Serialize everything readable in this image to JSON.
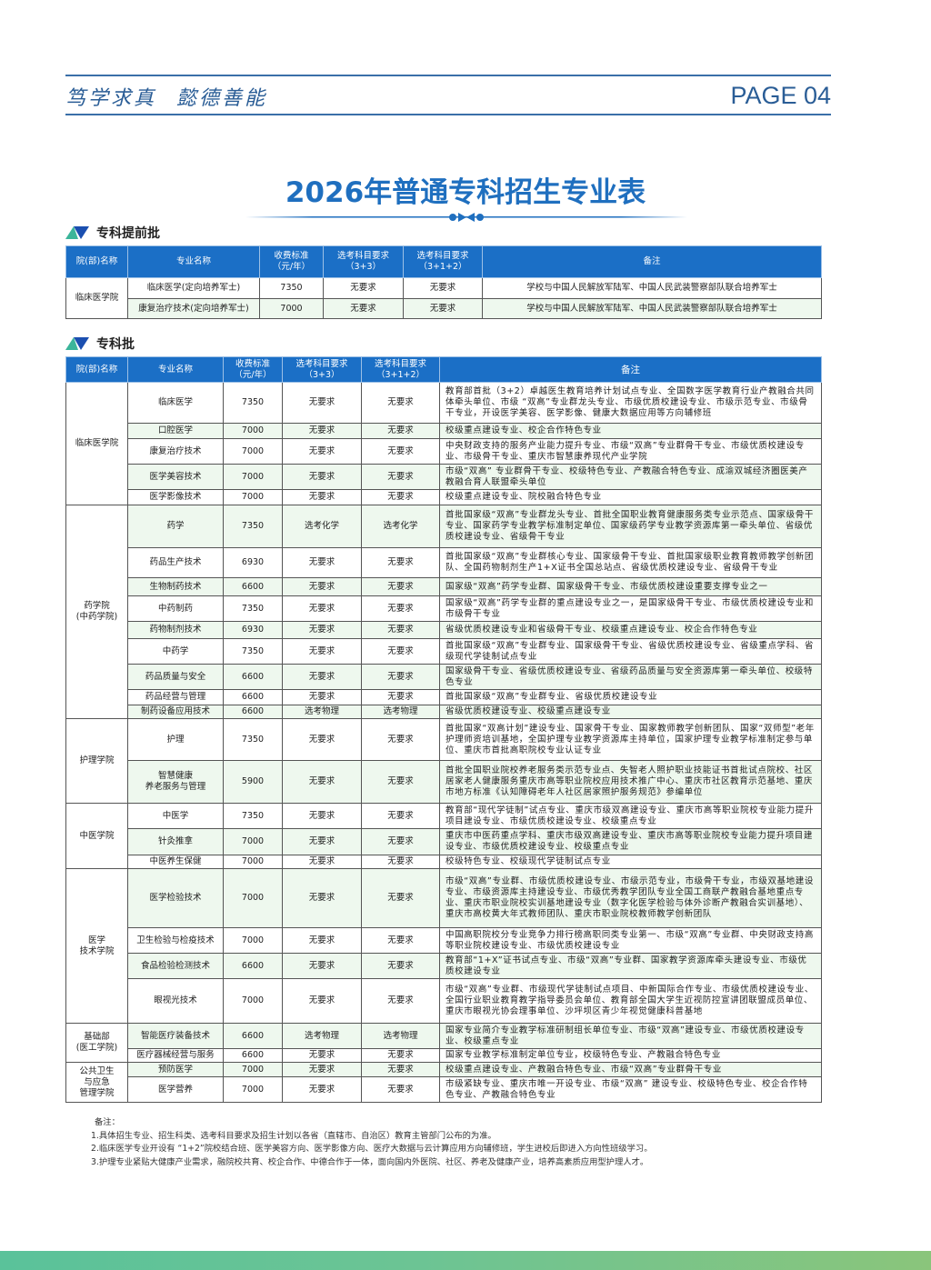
{
  "header": {
    "motto_1": "笃学求真",
    "motto_2": "懿德善能",
    "page_label": "PAGE 04"
  },
  "title": "2026年普通专科招生专业表",
  "colors": {
    "accent": "#1f6fbf",
    "header_bg": "#1b6fc6",
    "row_alt": "#eef8ee"
  },
  "columns": [
    "院(部)名称",
    "专业名称",
    "收费标准\n（元/年）",
    "选考科目要求\n（3+3）",
    "选考科目要求\n（3+1+2）",
    "备注"
  ],
  "early_batch": {
    "heading": "专科提前批",
    "groups": [
      {
        "college": "临床医学院",
        "rows": [
          {
            "major": "临床医学(定向培养军士)",
            "fee": "7350",
            "req33": "无要求",
            "req312": "无要求",
            "note": "学校与中国人民解放军陆军、中国人民武装警察部队联合培养军士"
          },
          {
            "major": "康复治疗技术(定向培养军士)",
            "fee": "7000",
            "req33": "无要求",
            "req312": "无要求",
            "note": "学校与中国人民解放军陆军、中国人民武装警察部队联合培养军士"
          }
        ]
      }
    ]
  },
  "regular_batch": {
    "heading": "专科批",
    "groups": [
      {
        "college": "临床医学院",
        "rows": [
          {
            "major": "临床医学",
            "fee": "7350",
            "req33": "无要求",
            "req312": "无要求",
            "note": "教育部首批（3+2）卓越医生教育培养计划试点专业、全国数字医学教育行业产教融合共同体牵头单位、市级 “双高”专业群龙头专业、市级优质校建设专业、市级示范专业、市级骨干专业，开设医学美容、医学影像、健康大数据应用等方向辅修班"
          },
          {
            "major": "口腔医学",
            "fee": "7000",
            "req33": "无要求",
            "req312": "无要求",
            "note": "校级重点建设专业、校企合作特色专业"
          },
          {
            "major": "康复治疗技术",
            "fee": "7000",
            "req33": "无要求",
            "req312": "无要求",
            "note": "中央财政支持的服务产业能力提升专业、市级“双高”专业群骨干专业、市级优质校建设专业、市级骨干专业、重庆市智慧康养现代产业学院"
          },
          {
            "major": "医学美容技术",
            "fee": "7000",
            "req33": "无要求",
            "req312": "无要求",
            "note": "市级“双高” 专业群骨干专业、校级特色专业、产教融合特色专业、成渝双城经济圈医美产教融合育人联盟牵头单位"
          },
          {
            "major": "医学影像技术",
            "fee": "7000",
            "req33": "无要求",
            "req312": "无要求",
            "note": "校级重点建设专业、院校融合特色专业"
          }
        ]
      },
      {
        "college": "药学院\n(中药学院)",
        "rows": [
          {
            "major": "药学",
            "fee": "7350",
            "req33": "选考化学",
            "req312": "选考化学",
            "note": "首批国家级“双高”专业群龙头专业、首批全国职业教育健康服务类专业示范点、国家级骨干专业、国家药学专业教学标准制定单位、国家级药学专业教学资源库第一牵头单位、省级优质校建设专业、省级骨干专业"
          },
          {
            "major": "药品生产技术",
            "fee": "6930",
            "req33": "无要求",
            "req312": "无要求",
            "note": "首批国家级“双高”专业群核心专业、国家级骨干专业、首批国家级职业教育教师教学创新团队、全国药物制剂生产1+X证书全国总站点、省级优质校建设专业、省级骨干专业"
          },
          {
            "major": "生物制药技术",
            "fee": "6600",
            "req33": "无要求",
            "req312": "无要求",
            "note": "国家级“双高”药学专业群、国家级骨干专业、市级优质校建设重要支撑专业之一"
          },
          {
            "major": "中药制药",
            "fee": "7350",
            "req33": "无要求",
            "req312": "无要求",
            "note": "国家级“双高”药学专业群的重点建设专业之一，是国家级骨干专业、市级优质校建设专业和市级骨干专业"
          },
          {
            "major": "药物制剂技术",
            "fee": "6930",
            "req33": "无要求",
            "req312": "无要求",
            "note": "省级优质校建设专业和省级骨干专业、校级重点建设专业、校企合作特色专业"
          },
          {
            "major": "中药学",
            "fee": "7350",
            "req33": "无要求",
            "req312": "无要求",
            "note": "首批国家级“双高”专业群专业、国家级骨干专业、省级优质校建设专业、省级重点学科、省级现代学徒制试点专业"
          },
          {
            "major": "药品质量与安全",
            "fee": "6600",
            "req33": "无要求",
            "req312": "无要求",
            "note": "国家级骨干专业、省级优质校建设专业、省级药品质量与安全资源库第一牵头单位、校级特色专业"
          },
          {
            "major": "药品经营与管理",
            "fee": "6600",
            "req33": "无要求",
            "req312": "无要求",
            "note": "首批国家级“双高”专业群专业、省级优质校建设专业"
          },
          {
            "major": "制药设备应用技术",
            "fee": "6600",
            "req33": "选考物理",
            "req312": "选考物理",
            "note": "省级优质校建设专业、校级重点建设专业"
          }
        ]
      },
      {
        "college": "护理学院",
        "rows": [
          {
            "major": "护理",
            "fee": "7350",
            "req33": "无要求",
            "req312": "无要求",
            "note": "首批国家“双高计划”建设专业、国家骨干专业、国家教师教学创新团队、国家“双师型”老年护理师资培训基地，全国护理专业教学资源库主持单位，国家护理专业教学标准制定参与单位、重庆市首批高职院校专业认证专业"
          },
          {
            "major": "智慧健康\n养老服务与管理",
            "fee": "5900",
            "req33": "无要求",
            "req312": "无要求",
            "note": "首批全国职业院校养老服务类示范专业点、失智老人照护职业技能证书首批试点院校、社区居家老人健康服务重庆市高等职业院校应用技术推广中心、重庆市社区教育示范基地、重庆市地方标准《认知障碍老年人社区居家照护服务规范》参编单位"
          }
        ]
      },
      {
        "college": "中医学院",
        "rows": [
          {
            "major": "中医学",
            "fee": "7350",
            "req33": "无要求",
            "req312": "无要求",
            "note": "教育部“现代学徒制”试点专业、重庆市级双高建设专业、重庆市高等职业院校专业能力提升项目建设专业、市级优质校建设专业、校级重点专业"
          },
          {
            "major": "针灸推拿",
            "fee": "7000",
            "req33": "无要求",
            "req312": "无要求",
            "note": "重庆市中医药重点学科、重庆市级双高建设专业、重庆市高等职业院校专业能力提升项目建设专业、市级优质校建设专业、校级重点专业"
          },
          {
            "major": "中医养生保健",
            "fee": "7000",
            "req33": "无要求",
            "req312": "无要求",
            "note": "校级特色专业、校级现代学徒制试点专业"
          }
        ]
      },
      {
        "college": "医学\n技术学院",
        "rows": [
          {
            "major": "医学检验技术",
            "fee": "7000",
            "req33": "无要求",
            "req312": "无要求",
            "note": "市级“双高”专业群、市级优质校建设专业、市级示范专业，市级骨干专业，市级双基地建设专业、市级资源库主持建设专业、市级优秀教学团队专业全国工商联产教融合基地重点专业、重庆市职业院校实训基地建设专业（数字化医学检验与体外诊断产教融合实训基地）、重庆市高校黄大年式教师团队、重庆市职业院校教师教学创新团队"
          },
          {
            "major": "卫生检验与检疫技术",
            "fee": "7000",
            "req33": "无要求",
            "req312": "无要求",
            "note": "中国高职院校分专业竞争力排行榜高职同类专业第一、市级“双高”专业群、中央财政支持高等职业院校建设专业、市级优质校建设专业"
          },
          {
            "major": "食品检验检测技术",
            "fee": "6600",
            "req33": "无要求",
            "req312": "无要求",
            "note": "教育部“1+X”证书试点专业、市级“双高”专业群、国家教学资源库牵头建设专业、市级优质校建设专业"
          },
          {
            "major": "眼视光技术",
            "fee": "7000",
            "req33": "无要求",
            "req312": "无要求",
            "note": "市级“双高”专业群、市级现代学徒制试点项目、中新国际合作专业、市级优质校建设专业、全国行业职业教育教学指导委员会单位、教育部全国大学生近视防控宣讲团联盟成员单位、重庆市眼视光协会理事单位、沙坪坝区青少年视觉健康科普基地"
          }
        ]
      },
      {
        "college": "基础部\n(医工学院)",
        "rows": [
          {
            "major": "智能医疗装备技术",
            "fee": "6600",
            "req33": "选考物理",
            "req312": "选考物理",
            "note": "国家专业简介专业教学标准研制组长单位专业、市级“双高”建设专业、市级优质校建设专业、校级重点专业"
          },
          {
            "major": "医疗器械经营与服务",
            "fee": "6600",
            "req33": "无要求",
            "req312": "无要求",
            "note": "国家专业教学标准制定单位专业，校级特色专业、产教融合特色专业"
          }
        ]
      },
      {
        "college": "公共卫生\n与应急\n管理学院",
        "rows": [
          {
            "major": "预防医学",
            "fee": "7000",
            "req33": "无要求",
            "req312": "无要求",
            "note": "校级重点建设专业、产教融合特色专业、市级“双高”专业群骨干专业"
          },
          {
            "major": "医学营养",
            "fee": "7000",
            "req33": "无要求",
            "req312": "无要求",
            "note": "市级紧缺专业、重庆市唯一开设专业、市级“双高” 建设专业、校级特色专业、校企合作特色专业、产教融合特色专业"
          }
        ]
      }
    ]
  },
  "footnotes": {
    "label": "备注：",
    "items": [
      "1.具体招生专业、招生科类、选考科目要求及招生计划以各省（直辖市、自治区）教育主管部门公布的为准。",
      "2.临床医学专业开设有 “1+2”院校结合班、医学美容方向、医学影像方向、医疗大数据与云计算应用方向辅修班，学生进校后即进入方向性班级学习。",
      "3.护理专业紧贴大健康产业需求，融院校共育、校企合作、中德合作于一体，面向国内外医院、社区、养老及健康产业，培养高素质应用型护理人才。"
    ]
  }
}
